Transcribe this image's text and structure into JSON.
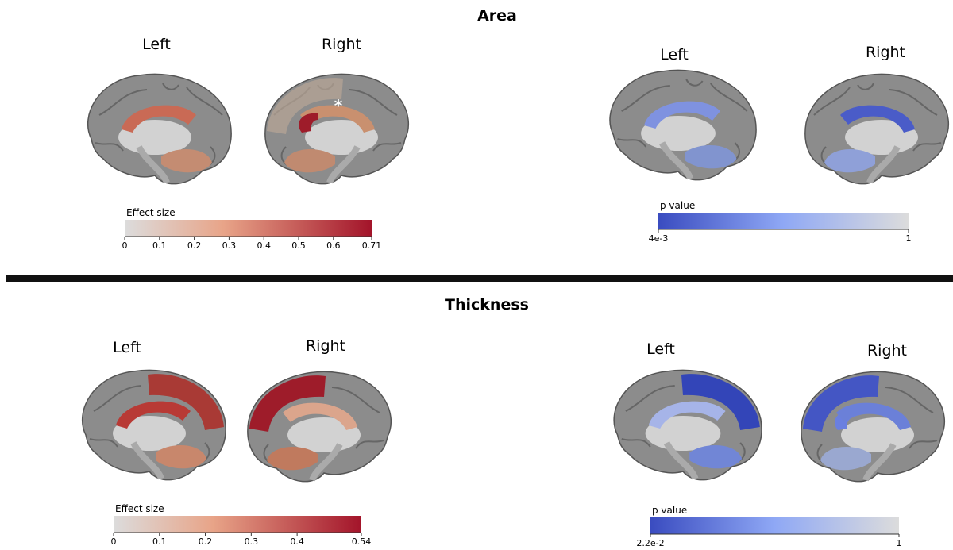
{
  "area": {
    "title": "Area",
    "effect": {
      "left": "Left",
      "right": "Right",
      "marker": "*",
      "colorbar": {
        "title": "Effect size",
        "lim": [
          0,
          0.71
        ],
        "ticks": [
          0,
          0.1,
          0.2,
          0.3,
          0.4,
          0.5,
          0.6,
          0.71
        ]
      }
    },
    "pvalue": {
      "left": "Left",
      "right": "Right",
      "colorbar": {
        "title": "p value",
        "lim": [
          0.004,
          1
        ],
        "ticks": [
          {
            "value": 0.004,
            "label": "4e-3"
          },
          1
        ]
      }
    }
  },
  "thickness": {
    "title": "Thickness",
    "effect": {
      "left": "Left",
      "right": "Right",
      "colorbar": {
        "title": "Effect size",
        "lim": [
          0,
          0.54
        ],
        "ticks": [
          0,
          0.1,
          0.2,
          0.3,
          0.4,
          0.54
        ]
      }
    },
    "pvalue": {
      "left": "Left",
      "right": "Right",
      "colorbar": {
        "title": "p value",
        "lim": [
          0.022,
          1
        ],
        "ticks": [
          {
            "value": 0.022,
            "label": "2.2e-2"
          },
          1
        ]
      }
    }
  }
}
